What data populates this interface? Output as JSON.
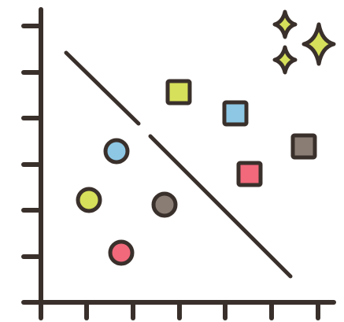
{
  "illustration": {
    "icon": "scatter-classification-illustration",
    "colors": {
      "outline": "#3a302b",
      "lime": "#d7e05a",
      "blue": "#8dc7e4",
      "pink": "#f1697b",
      "taupe": "#8a7d74",
      "background": "#ffffff"
    },
    "circles": [
      {
        "name": "circle-blue",
        "color": "blue"
      },
      {
        "name": "circle-lime",
        "color": "lime"
      },
      {
        "name": "circle-taupe",
        "color": "taupe"
      },
      {
        "name": "circle-pink",
        "color": "pink"
      }
    ],
    "squares": [
      {
        "name": "square-lime",
        "color": "lime"
      },
      {
        "name": "square-blue",
        "color": "blue"
      },
      {
        "name": "square-taupe",
        "color": "taupe"
      },
      {
        "name": "square-pink",
        "color": "pink"
      }
    ],
    "sparkles": [
      "sparkle-large",
      "sparkle-small-top",
      "sparkle-small-bottom"
    ]
  }
}
